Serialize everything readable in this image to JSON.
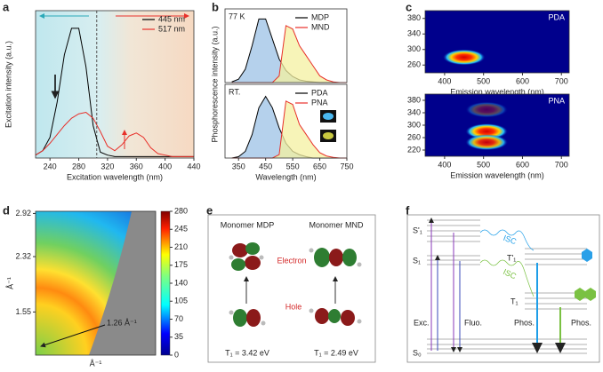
{
  "panel_letters": [
    "a",
    "b",
    "c",
    "d",
    "e",
    "f"
  ],
  "chart_data": [
    {
      "type": "line",
      "xlabel": "Excitation wavelength (nm)",
      "ylabel": "Excitation intensity (a.u.)",
      "x": [
        220,
        230,
        240,
        250,
        260,
        270,
        280,
        290,
        300,
        310,
        320,
        330,
        340,
        350,
        360,
        370,
        380,
        390,
        400,
        410,
        420,
        430,
        440
      ],
      "xlim": [
        220,
        440
      ],
      "xticks": [
        240,
        280,
        320,
        360,
        400,
        440
      ],
      "ylim": [
        0,
        100
      ],
      "vline": 305,
      "series": [
        {
          "name": "445 nm",
          "color": "#000000",
          "values": [
            2,
            5,
            14,
            38,
            70,
            88,
            88,
            62,
            22,
            4,
            2,
            1,
            1,
            1,
            1,
            1,
            1,
            1,
            1,
            1,
            1,
            1,
            1
          ]
        },
        {
          "name": "517 nm",
          "color": "#e8302a",
          "values": [
            2,
            5,
            10,
            16,
            22,
            27,
            30,
            31,
            27,
            18,
            8,
            5,
            9,
            15,
            17,
            14,
            7,
            3,
            2,
            1,
            1,
            1,
            1
          ]
        }
      ]
    },
    {
      "type": "line",
      "annotation": "77 K",
      "ylabel": "Phosphorescence intensity (a.u.)",
      "x": [
        325,
        350,
        375,
        400,
        425,
        450,
        475,
        500,
        525,
        550,
        575,
        600,
        625,
        650,
        675,
        700,
        725,
        750
      ],
      "xlim": [
        300,
        750
      ],
      "ylim": [
        0,
        1.1
      ],
      "series": [
        {
          "name": "MDP",
          "color": "#000000",
          "fill": "#9cc2e6",
          "values": [
            0.01,
            0.05,
            0.2,
            0.55,
            0.95,
            0.95,
            0.65,
            0.35,
            0.18,
            0.09,
            0.04,
            0.02,
            0.01,
            0,
            0,
            0,
            0,
            0
          ]
        },
        {
          "name": "MND",
          "color": "#e8302a",
          "fill": "#f4f0a0",
          "values": [
            0,
            0,
            0,
            0,
            0,
            0,
            0,
            0.1,
            0.85,
            0.8,
            0.55,
            0.4,
            0.25,
            0.1,
            0.04,
            0.01,
            0,
            0
          ]
        }
      ]
    },
    {
      "type": "line",
      "annotation": "RT.",
      "xlabel": "Wavelength (nm)",
      "x": [
        325,
        350,
        375,
        400,
        425,
        450,
        475,
        500,
        525,
        550,
        575,
        600,
        625,
        650,
        675,
        700,
        725,
        750
      ],
      "xlim": [
        300,
        750
      ],
      "xticks": [
        350,
        450,
        550,
        650,
        750
      ],
      "ylim": [
        0,
        1.1
      ],
      "series": [
        {
          "name": "PDA",
          "color": "#000000",
          "fill": "#9cc2e6",
          "values": [
            0,
            0.02,
            0.1,
            0.35,
            0.75,
            0.92,
            0.75,
            0.45,
            0.22,
            0.1,
            0.05,
            0.02,
            0,
            0,
            0,
            0,
            0,
            0
          ]
        },
        {
          "name": "PNA",
          "color": "#e8302a",
          "fill": "#f4f0a0",
          "values": [
            0,
            0,
            0,
            0,
            0,
            0,
            0,
            0.05,
            0.85,
            0.8,
            0.5,
            0.35,
            0.2,
            0.08,
            0.03,
            0.01,
            0,
            0
          ]
        }
      ]
    },
    {
      "type": "heatmap",
      "annotation": "PDA",
      "xlabel": "Emission wavelength (nm)",
      "ylabel": "Excitation wavelength (nm)",
      "xlim": [
        350,
        720
      ],
      "xticks": [
        400,
        500,
        600,
        700
      ],
      "ylim": [
        240,
        400
      ],
      "yticks": [
        260,
        300,
        340,
        380
      ],
      "x": [
        450
      ],
      "values": [
        280
      ],
      "intensity": [
        1
      ]
    },
    {
      "type": "heatmap",
      "annotation": "PNA",
      "xlabel": "Emission wavelength (nm)",
      "xlim": [
        350,
        720
      ],
      "xticks": [
        400,
        500,
        600,
        700
      ],
      "ylim": [
        200,
        400
      ],
      "yticks": [
        220,
        260,
        300,
        340,
        380
      ],
      "x": [
        508,
        508,
        508
      ],
      "values": [
        280,
        245,
        350
      ],
      "intensity": [
        1,
        0.9,
        0.35
      ]
    },
    {
      "type": "image",
      "xlabel": "Å⁻¹",
      "ylabel": "Å⁻¹",
      "annotation": "1.26 Å⁻¹",
      "ylim": [
        0.95,
        2.95
      ],
      "yticks": [
        1.55,
        2.32,
        2.92
      ],
      "clim": [
        0,
        280
      ],
      "cticks": [
        0,
        35,
        70,
        105,
        140,
        175,
        210,
        245,
        280
      ]
    }
  ],
  "diagram_e": {
    "titles": [
      "Monomer MDP",
      "Monomer MND"
    ],
    "electron": "Electron",
    "hole": "Hole",
    "energies": [
      "T₁ = 3.42 eV",
      "T₁ = 2.49 eV"
    ]
  },
  "diagram_f": {
    "levels": [
      "S'₁",
      "S₁",
      "T'₁",
      "T₁",
      "S₀"
    ],
    "transitions": [
      "Exc.",
      "Fluo.",
      "Phos.",
      "Phos."
    ],
    "isc": [
      "ISC",
      "ISC"
    ]
  }
}
